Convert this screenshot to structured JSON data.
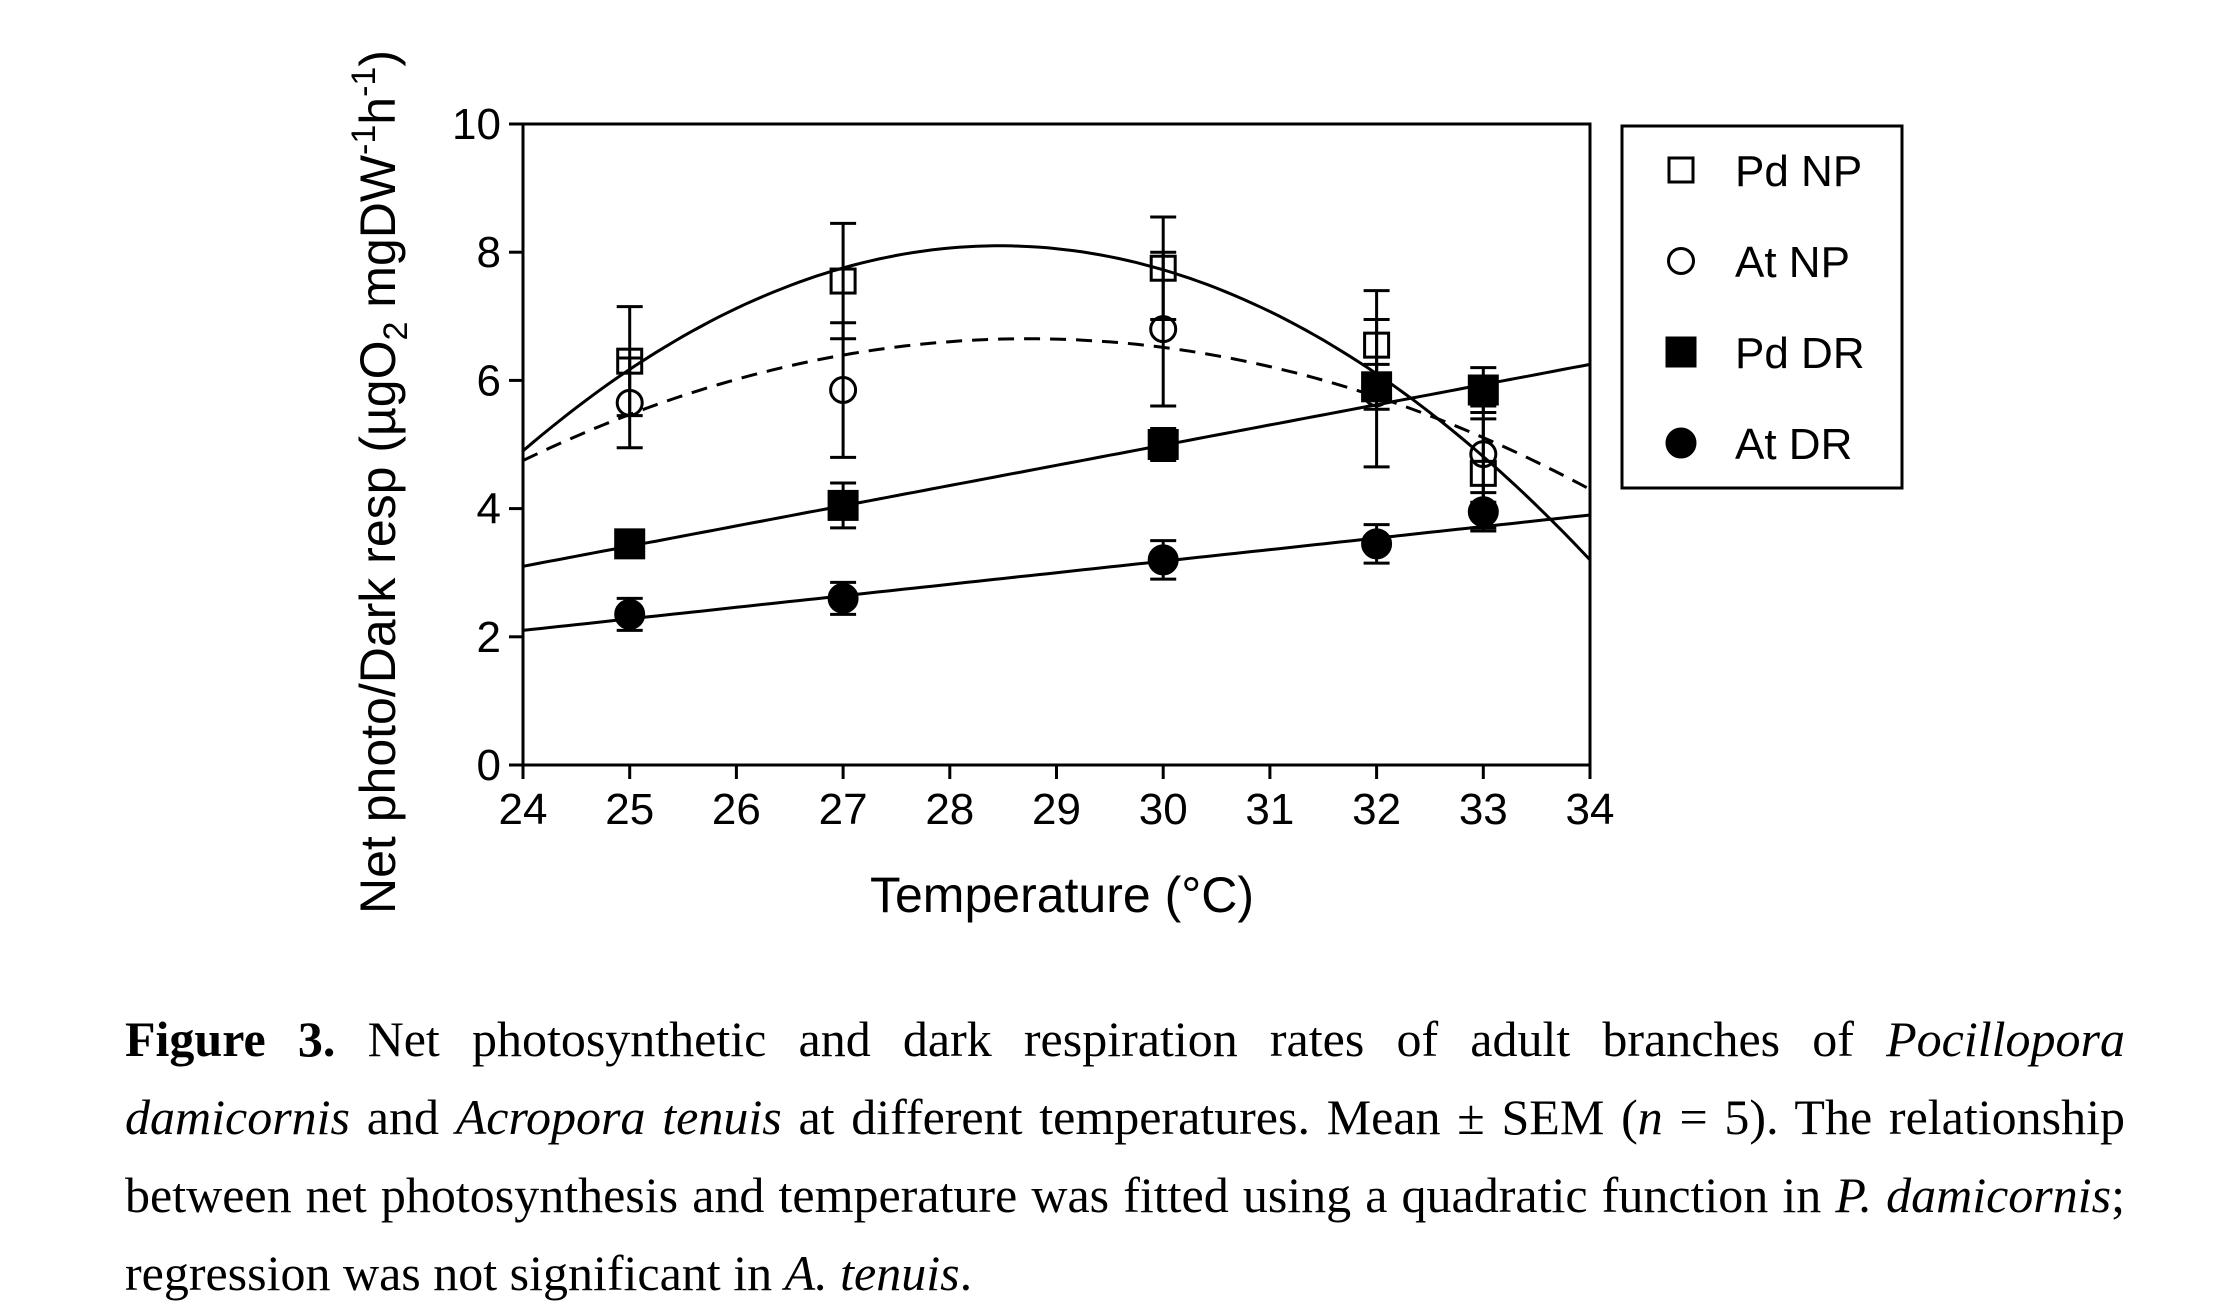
{
  "chart_data": {
    "type": "scatter",
    "xlabel": "Temperature (°C)",
    "ylabel": "Net photo/Dark resp (µgO2 mgDW-1h-1)",
    "xlim": [
      24,
      34
    ],
    "ylim": [
      0,
      10
    ],
    "x_ticks": [
      "24",
      "25",
      "26",
      "27",
      "28",
      "29",
      "30",
      "31",
      "32",
      "33",
      "34"
    ],
    "y_ticks": [
      "0",
      "2",
      "4",
      "6",
      "8",
      "10"
    ],
    "grid": false,
    "legend_position": "right",
    "series": [
      {
        "name": "Pd NP",
        "marker": "open-square",
        "x": [
          25,
          27,
          30,
          32,
          33
        ],
        "y": [
          6.3,
          7.55,
          7.75,
          6.55,
          4.55
        ],
        "error": [
          0.85,
          0.9,
          0.8,
          0.85,
          0.85
        ]
      },
      {
        "name": "At NP",
        "marker": "open-circle",
        "x": [
          25,
          27,
          30,
          32,
          33
        ],
        "y": [
          5.65,
          5.85,
          6.8,
          5.8,
          4.85
        ],
        "error": [
          0.7,
          1.05,
          1.2,
          1.15,
          0.75
        ]
      },
      {
        "name": "Pd DR",
        "marker": "filled-square",
        "x": [
          25,
          27,
          30,
          32,
          33
        ],
        "y": [
          3.45,
          4.05,
          5.0,
          5.9,
          5.85
        ],
        "error": [
          0.2,
          0.35,
          0.25,
          0.35,
          0.35
        ]
      },
      {
        "name": "At DR",
        "marker": "filled-circle",
        "x": [
          25,
          27,
          30,
          32,
          33
        ],
        "y": [
          2.35,
          2.6,
          3.2,
          3.45,
          3.95
        ],
        "error": [
          0.25,
          0.25,
          0.3,
          0.3,
          0.3
        ]
      }
    ],
    "fits": [
      {
        "series": "Pd NP",
        "kind": "quadratic",
        "style": "solid",
        "x": [
          24,
          28.45,
          34
        ],
        "y": [
          4.9,
          8.1,
          3.2
        ]
      },
      {
        "series": "At NP",
        "kind": "quadratic",
        "style": "dashed",
        "x": [
          24,
          28.7,
          34
        ],
        "y": [
          4.75,
          6.65,
          4.3
        ]
      },
      {
        "series": "Pd DR",
        "kind": "linear",
        "style": "solid",
        "x": [
          24,
          34
        ],
        "y": [
          3.1,
          6.25
        ]
      },
      {
        "series": "At DR",
        "kind": "linear",
        "style": "solid",
        "x": [
          24,
          34
        ],
        "y": [
          2.1,
          3.9
        ]
      }
    ]
  },
  "caption": {
    "label": "Figure 3.",
    "t1": " Net photosynthetic and dark respiration rates of adult branches of ",
    "i1": "Pocillopora damicornis",
    "t2": " and ",
    "i2": "Acropora tenuis",
    "t3": " at different temperatures. Mean ± SEM (",
    "i3": "n",
    "t4": " = 5). The relationship between net photosynthesis and temperature was fitted using a quadratic function in ",
    "i4": "P. damicornis",
    "t5": "; regression was not significant in ",
    "i5": "A. tenuis",
    "t6": "."
  }
}
